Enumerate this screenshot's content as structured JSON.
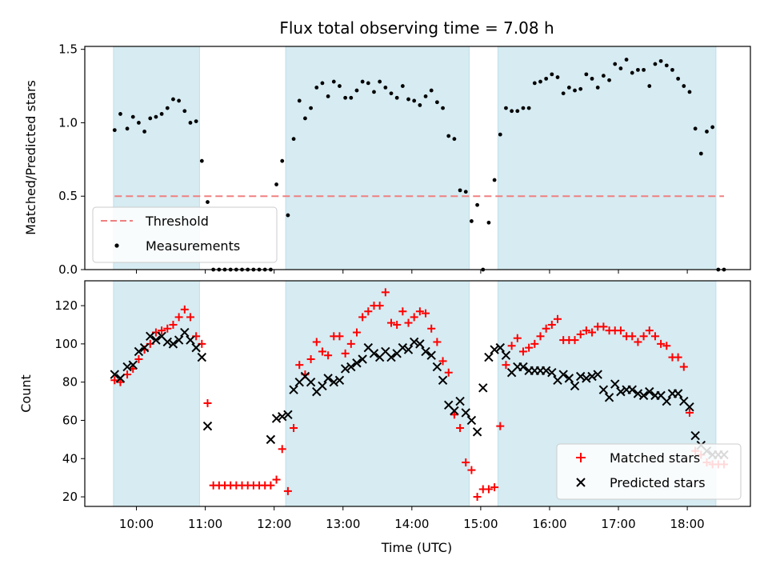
{
  "chart_data": [
    {
      "type": "scatter",
      "title": "Flux total observing time = 7.08 h",
      "xlabel": "",
      "ylabel": "Matched/Predicted stars",
      "ylim": [
        0,
        1.52
      ],
      "yticks": [
        "0.0",
        "0.5",
        "1.0",
        "1.5"
      ],
      "ytick_values": [
        0,
        0.5,
        1.0,
        1.5
      ],
      "legend_position": "lower-left",
      "threshold": {
        "name": "Threshold",
        "value": 0.5,
        "color": "#f08080"
      },
      "shaded_intervals": [
        [
          "09:40",
          "10:55"
        ],
        [
          "12:10",
          "14:50"
        ],
        [
          "15:15",
          "18:25"
        ]
      ],
      "shade_color": "#add8e6",
      "series": [
        {
          "name": "Measurements",
          "color": "#000000",
          "x": [
            "09:41",
            "09:46",
            "09:52",
            "09:57",
            "10:02",
            "10:07",
            "10:12",
            "10:17",
            "10:22",
            "10:27",
            "10:32",
            "10:37",
            "10:42",
            "10:47",
            "10:52",
            "10:57",
            "11:02",
            "11:07",
            "11:12",
            "11:17",
            "11:22",
            "11:27",
            "11:32",
            "11:37",
            "11:42",
            "11:47",
            "11:52",
            "11:57",
            "12:02",
            "12:07",
            "12:12",
            "12:17",
            "12:22",
            "12:27",
            "12:32",
            "12:37",
            "12:42",
            "12:47",
            "12:52",
            "12:57",
            "13:02",
            "13:07",
            "13:12",
            "13:17",
            "13:22",
            "13:27",
            "13:32",
            "13:37",
            "13:42",
            "13:47",
            "13:52",
            "13:57",
            "14:02",
            "14:07",
            "14:12",
            "14:17",
            "14:22",
            "14:27",
            "14:32",
            "14:37",
            "14:42",
            "14:47",
            "14:52",
            "14:57",
            "15:02",
            "15:07",
            "15:12",
            "15:17",
            "15:22",
            "15:27",
            "15:32",
            "15:37",
            "15:42",
            "15:47",
            "15:52",
            "15:57",
            "16:02",
            "16:07",
            "16:12",
            "16:17",
            "16:22",
            "16:27",
            "16:32",
            "16:37",
            "16:42",
            "16:47",
            "16:52",
            "16:57",
            "17:02",
            "17:07",
            "17:12",
            "17:17",
            "17:22",
            "17:27",
            "17:32",
            "17:37",
            "17:42",
            "17:47",
            "17:52",
            "17:57",
            "18:02",
            "18:07",
            "18:12",
            "18:17",
            "18:22",
            "18:27",
            "18:32"
          ],
          "y": [
            0.95,
            1.06,
            0.96,
            1.04,
            1.0,
            0.94,
            1.03,
            1.04,
            1.06,
            1.1,
            1.16,
            1.15,
            1.08,
            1.0,
            1.01,
            0.74,
            0.46,
            0,
            0,
            0,
            0,
            0,
            0,
            0,
            0,
            0,
            0,
            0,
            0.58,
            0.74,
            0.37,
            0.89,
            1.15,
            1.03,
            1.1,
            1.24,
            1.27,
            1.18,
            1.28,
            1.25,
            1.17,
            1.17,
            1.22,
            1.28,
            1.27,
            1.21,
            1.28,
            1.24,
            1.2,
            1.17,
            1.25,
            1.16,
            1.15,
            1.12,
            1.18,
            1.22,
            1.14,
            1.1,
            0.91,
            0.89,
            0.54,
            0.53,
            0.33,
            0.44,
            0.0,
            0.32,
            0.61,
            0.92,
            1.1,
            1.08,
            1.08,
            1.1,
            1.1,
            1.27,
            1.28,
            1.3,
            1.33,
            1.31,
            1.2,
            1.24,
            1.22,
            1.23,
            1.33,
            1.3,
            1.24,
            1.32,
            1.29,
            1.4,
            1.37,
            1.43,
            1.34,
            1.36,
            1.36,
            1.25,
            1.4,
            1.42,
            1.39,
            1.36,
            1.3,
            1.25,
            1.21,
            0.96,
            0.79,
            0.94,
            0.97,
            0.0,
            0.0
          ]
        }
      ]
    },
    {
      "type": "scatter",
      "title": "",
      "xlabel": "Time (UTC)",
      "ylabel": "Count",
      "ylim": [
        15,
        133
      ],
      "yticks": [
        "20",
        "40",
        "60",
        "80",
        "100",
        "120"
      ],
      "ytick_values": [
        20,
        40,
        60,
        80,
        100,
        120
      ],
      "xlim": [
        "09:15",
        "18:55"
      ],
      "xticks": [
        "10:00",
        "11:00",
        "12:00",
        "13:00",
        "14:00",
        "15:00",
        "16:00",
        "17:00",
        "18:00"
      ],
      "legend_position": "lower-right",
      "shaded_intervals": [
        [
          "09:40",
          "10:55"
        ],
        [
          "12:10",
          "14:50"
        ],
        [
          "15:15",
          "18:25"
        ]
      ],
      "shade_color": "#add8e6",
      "series": [
        {
          "name": "Matched stars",
          "color": "#ff0000",
          "marker": "plus",
          "x": [
            "09:41",
            "09:46",
            "09:52",
            "09:57",
            "10:02",
            "10:07",
            "10:12",
            "10:17",
            "10:22",
            "10:27",
            "10:32",
            "10:37",
            "10:42",
            "10:47",
            "10:52",
            "10:57",
            "11:02",
            "11:07",
            "11:12",
            "11:17",
            "11:22",
            "11:27",
            "11:32",
            "11:37",
            "11:42",
            "11:47",
            "11:52",
            "11:57",
            "12:02",
            "12:07",
            "12:12",
            "12:17",
            "12:22",
            "12:27",
            "12:32",
            "12:37",
            "12:42",
            "12:47",
            "12:52",
            "12:57",
            "13:02",
            "13:07",
            "13:12",
            "13:17",
            "13:22",
            "13:27",
            "13:32",
            "13:37",
            "13:42",
            "13:47",
            "13:52",
            "13:57",
            "14:02",
            "14:07",
            "14:12",
            "14:17",
            "14:22",
            "14:27",
            "14:32",
            "14:37",
            "14:42",
            "14:47",
            "14:52",
            "14:57",
            "15:02",
            "15:07",
            "15:12",
            "15:17",
            "15:22",
            "15:27",
            "15:32",
            "15:37",
            "15:42",
            "15:47",
            "15:52",
            "15:57",
            "16:02",
            "16:07",
            "16:12",
            "16:17",
            "16:22",
            "16:27",
            "16:32",
            "16:37",
            "16:42",
            "16:47",
            "16:52",
            "16:57",
            "17:02",
            "17:07",
            "17:12",
            "17:17",
            "17:22",
            "17:27",
            "17:32",
            "17:37",
            "17:42",
            "17:47",
            "17:52",
            "17:57",
            "18:02",
            "18:07",
            "18:12",
            "18:17",
            "18:22",
            "18:27",
            "18:32"
          ],
          "y": [
            81,
            80,
            84,
            87,
            92,
            97,
            100,
            106,
            107,
            108,
            110,
            114,
            118,
            114,
            104,
            100,
            69,
            26,
            26,
            26,
            26,
            26,
            26,
            26,
            26,
            26,
            26,
            26,
            29,
            45,
            23,
            56,
            89,
            84,
            92,
            101,
            96,
            94,
            104,
            104,
            95,
            100,
            106,
            114,
            117,
            120,
            120,
            127,
            111,
            110,
            117,
            111,
            114,
            117,
            116,
            108,
            101,
            91,
            85,
            63,
            56,
            38,
            34,
            20,
            24,
            24,
            25,
            57,
            89,
            99,
            103,
            96,
            98,
            100,
            104,
            108,
            110,
            113,
            102,
            102,
            102,
            105,
            107,
            106,
            109,
            109,
            107,
            107,
            107,
            104,
            104,
            101,
            104,
            107,
            104,
            100,
            99,
            93,
            93,
            88,
            64,
            44,
            42,
            38,
            37,
            37,
            37
          ]
        },
        {
          "name": "Predicted stars",
          "color": "#000000",
          "marker": "x",
          "x": [
            "09:41",
            "09:46",
            "09:52",
            "09:57",
            "10:02",
            "10:07",
            "10:12",
            "10:17",
            "10:22",
            "10:27",
            "10:32",
            "10:37",
            "10:42",
            "10:47",
            "10:52",
            "10:57",
            "11:02",
            "11:57",
            "12:02",
            "12:07",
            "12:12",
            "12:17",
            "12:22",
            "12:27",
            "12:32",
            "12:37",
            "12:42",
            "12:47",
            "12:52",
            "12:57",
            "13:02",
            "13:07",
            "13:12",
            "13:17",
            "13:22",
            "13:27",
            "13:32",
            "13:37",
            "13:42",
            "13:47",
            "13:52",
            "13:57",
            "14:02",
            "14:07",
            "14:12",
            "14:17",
            "14:22",
            "14:27",
            "14:32",
            "14:37",
            "14:42",
            "14:47",
            "14:52",
            "14:57",
            "15:02",
            "15:07",
            "15:12",
            "15:17",
            "15:22",
            "15:27",
            "15:32",
            "15:37",
            "15:42",
            "15:47",
            "15:52",
            "15:57",
            "16:02",
            "16:07",
            "16:12",
            "16:17",
            "16:22",
            "16:27",
            "16:32",
            "16:37",
            "16:42",
            "16:47",
            "16:52",
            "16:57",
            "17:02",
            "17:07",
            "17:12",
            "17:17",
            "17:22",
            "17:27",
            "17:32",
            "17:37",
            "17:42",
            "17:47",
            "17:52",
            "17:57",
            "18:02",
            "18:07",
            "18:12",
            "18:17",
            "18:22",
            "18:27",
            "18:32"
          ],
          "y": [
            84,
            82,
            88,
            89,
            96,
            98,
            104,
            102,
            104,
            101,
            100,
            102,
            106,
            102,
            98,
            93,
            57,
            50,
            61,
            62,
            63,
            76,
            80,
            83,
            80,
            75,
            78,
            82,
            80,
            81,
            87,
            88,
            90,
            92,
            98,
            95,
            93,
            96,
            93,
            95,
            98,
            97,
            101,
            100,
            96,
            94,
            88,
            81,
            68,
            65,
            70,
            64,
            60,
            54,
            77,
            93,
            97,
            98,
            94,
            85,
            88,
            88,
            86,
            86,
            86,
            86,
            85,
            81,
            84,
            82,
            78,
            83,
            82,
            83,
            84,
            76,
            72,
            79,
            75,
            76,
            76,
            74,
            73,
            75,
            73,
            73,
            70,
            74,
            74,
            70,
            67,
            52,
            47,
            44,
            42,
            42,
            42
          ]
        }
      ]
    }
  ]
}
